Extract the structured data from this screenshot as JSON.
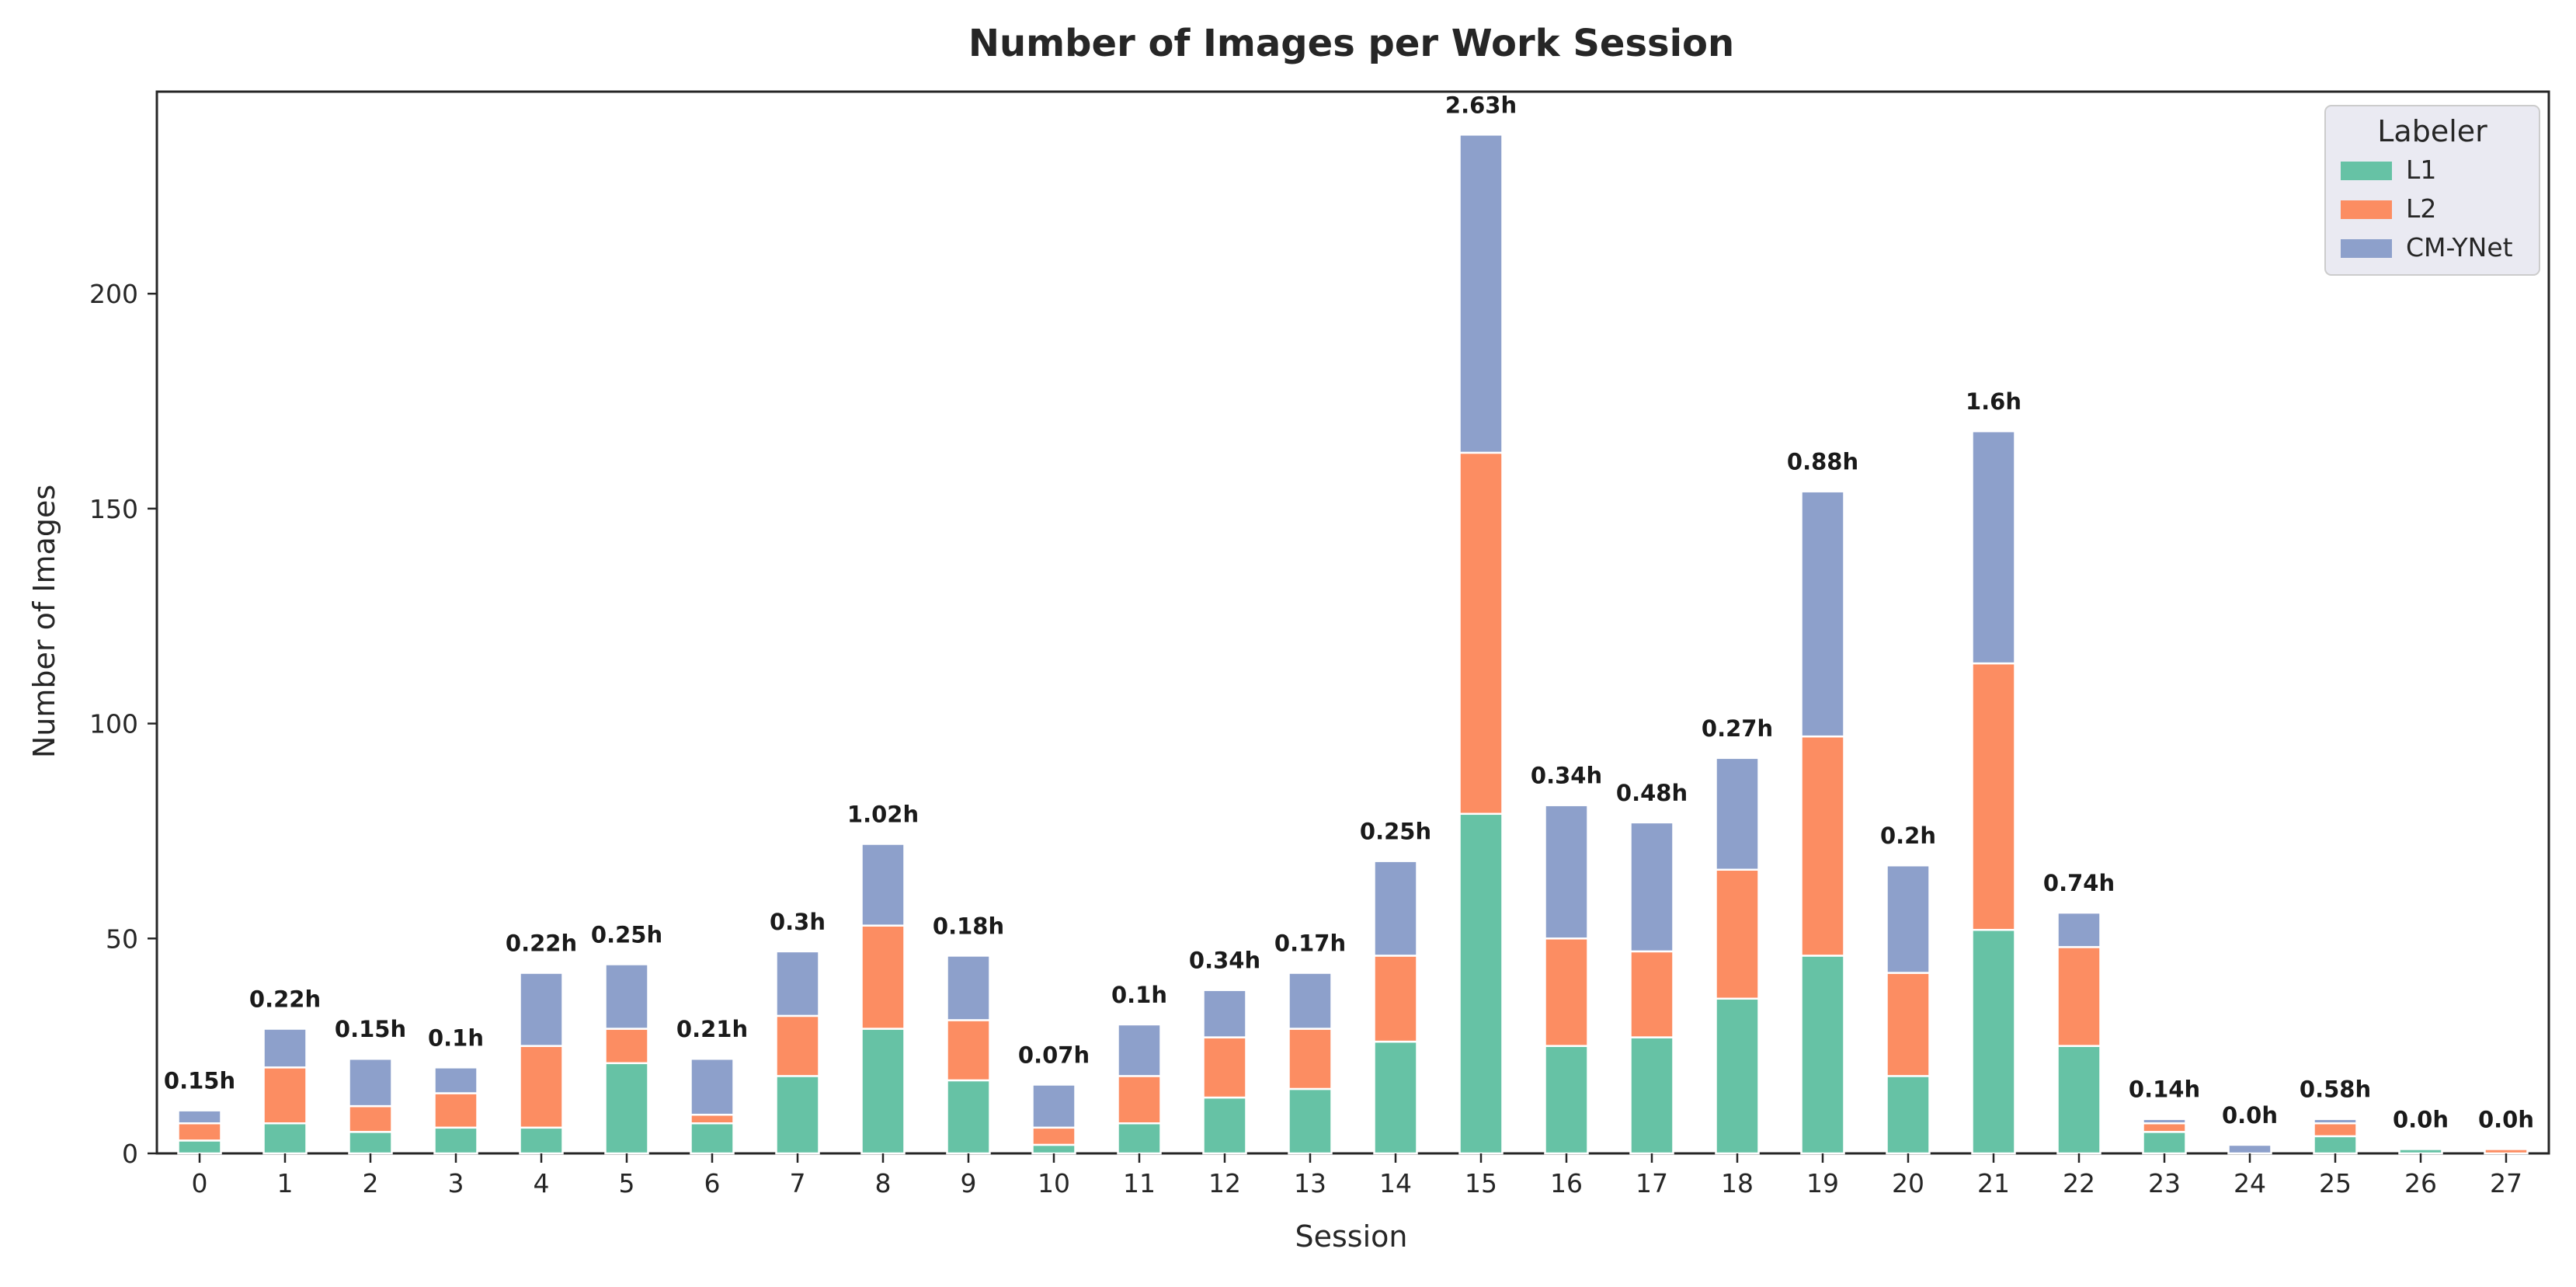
{
  "chart_data": {
    "type": "bar",
    "stacked": true,
    "title": "Number of Images per Work Session",
    "xlabel": "Session",
    "ylabel": "Number of Images",
    "ylim": [
      0,
      247
    ],
    "yticks": [
      0,
      50,
      100,
      150,
      200
    ],
    "grid": false,
    "legend": {
      "title": "Labeler",
      "placement": "top-right"
    },
    "categories": [
      "0",
      "1",
      "2",
      "3",
      "4",
      "5",
      "6",
      "7",
      "8",
      "9",
      "10",
      "11",
      "12",
      "13",
      "14",
      "15",
      "16",
      "17",
      "18",
      "19",
      "20",
      "21",
      "22",
      "23",
      "24",
      "25",
      "26",
      "27"
    ],
    "series": [
      {
        "name": "L1",
        "color": "#66c2a5",
        "values": [
          3,
          7,
          5,
          6,
          6,
          21,
          7,
          18,
          29,
          17,
          2,
          7,
          13,
          15,
          26,
          79,
          25,
          27,
          36,
          46,
          18,
          52,
          25,
          5,
          0,
          4,
          1,
          0
        ]
      },
      {
        "name": "L2",
        "color": "#fc8d62",
        "values": [
          4,
          13,
          6,
          8,
          19,
          8,
          2,
          14,
          24,
          14,
          4,
          11,
          14,
          14,
          20,
          84,
          25,
          20,
          30,
          51,
          24,
          62,
          23,
          2,
          0,
          3,
          0,
          1
        ]
      },
      {
        "name": "CM-YNet",
        "color": "#8da0cb",
        "values": [
          3,
          9,
          11,
          6,
          17,
          15,
          13,
          15,
          19,
          15,
          10,
          12,
          11,
          13,
          22,
          74,
          31,
          30,
          26,
          57,
          25,
          54,
          8,
          1,
          2,
          1,
          0,
          0
        ]
      }
    ],
    "annotations": [
      "0.15h",
      "0.22h",
      "0.15h",
      "0.1h",
      "0.22h",
      "0.25h",
      "0.21h",
      "0.3h",
      "1.02h",
      "0.18h",
      "0.07h",
      "0.1h",
      "0.34h",
      "0.17h",
      "0.25h",
      "2.63h",
      "0.34h",
      "0.48h",
      "0.27h",
      "0.88h",
      "0.2h",
      "1.6h",
      "0.74h",
      "0.14h",
      "0.0h",
      "0.58h",
      "0.0h",
      "0.0h"
    ]
  }
}
